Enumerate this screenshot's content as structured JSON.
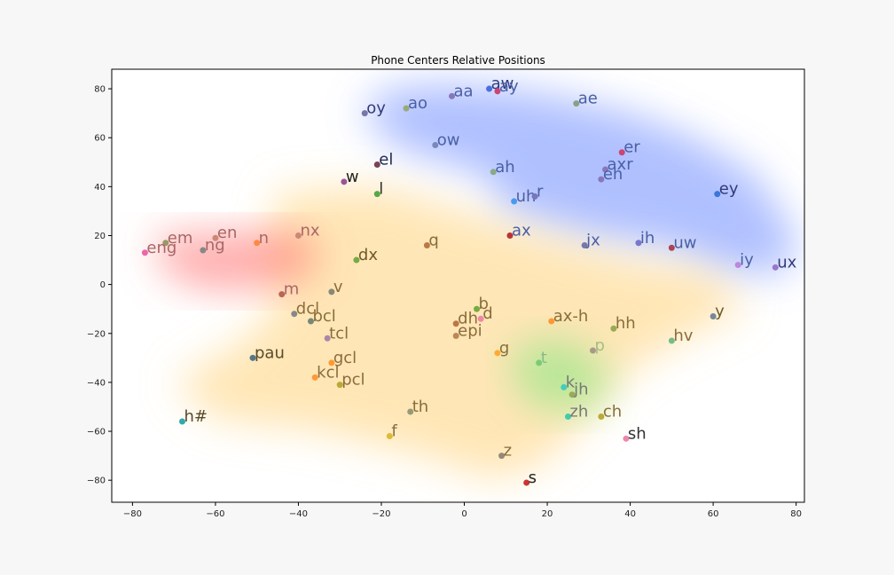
{
  "chart_data": {
    "type": "scatter",
    "title": "Phone Centers Relative Positions",
    "xlabel": "",
    "ylabel": "",
    "xlim": [
      -85,
      82
    ],
    "ylim": [
      -89,
      88
    ],
    "xticks": [
      -80,
      -60,
      -40,
      -20,
      0,
      20,
      40,
      60,
      80
    ],
    "yticks": [
      -80,
      -60,
      -40,
      -20,
      0,
      20,
      40,
      60,
      80
    ],
    "grid": false,
    "regions": [
      {
        "color": "#6e8dff",
        "points": [
          [
            -5,
            82
          ],
          [
            12,
            80
          ],
          [
            25,
            76
          ],
          [
            40,
            70
          ],
          [
            55,
            60
          ],
          [
            70,
            45
          ],
          [
            80,
            20
          ],
          [
            78,
            5
          ],
          [
            65,
            5
          ],
          [
            50,
            15
          ],
          [
            30,
            20
          ],
          [
            10,
            30
          ],
          [
            5,
            45
          ],
          [
            -15,
            55
          ],
          [
            -25,
            70
          ],
          [
            -18,
            80
          ]
        ]
      },
      {
        "color": "#ffd27a",
        "points": [
          [
            -45,
            38
          ],
          [
            -20,
            40
          ],
          [
            0,
            30
          ],
          [
            15,
            22
          ],
          [
            40,
            10
          ],
          [
            60,
            5
          ],
          [
            68,
            -10
          ],
          [
            55,
            -20
          ],
          [
            40,
            -35
          ],
          [
            30,
            -55
          ],
          [
            20,
            -72
          ],
          [
            8,
            -80
          ],
          [
            -10,
            -70
          ],
          [
            -35,
            -60
          ],
          [
            -60,
            -55
          ],
          [
            -70,
            -40
          ],
          [
            -55,
            -25
          ],
          [
            -45,
            -10
          ],
          [
            -48,
            10
          ]
        ]
      },
      {
        "color": "#ff6b6b",
        "points": [
          [
            -75,
            20
          ],
          [
            -55,
            22
          ],
          [
            -38,
            22
          ],
          [
            -35,
            8
          ],
          [
            -42,
            0
          ],
          [
            -60,
            -3
          ],
          [
            -72,
            4
          ]
        ]
      },
      {
        "color": "#7ee87e",
        "points": [
          [
            12,
            -25
          ],
          [
            25,
            -22
          ],
          [
            35,
            -35
          ],
          [
            33,
            -50
          ],
          [
            20,
            -52
          ],
          [
            12,
            -42
          ]
        ]
      }
    ],
    "points": [
      {
        "label": "aa",
        "x": -3,
        "y": 77,
        "color": "#8877bb",
        "label_color": "#4a5fa5"
      },
      {
        "label": "aw",
        "x": 6,
        "y": 80,
        "color": "#4a6fe0",
        "label_color": "#333b7a"
      },
      {
        "label": "ay",
        "x": 8,
        "y": 79,
        "color": "#cc4477",
        "label_color": "#4a5fa5"
      },
      {
        "label": "ae",
        "x": 27,
        "y": 74,
        "color": "#88a088",
        "label_color": "#4a5fa5"
      },
      {
        "label": "oy",
        "x": -24,
        "y": 70,
        "color": "#7777aa",
        "label_color": "#333b7a"
      },
      {
        "label": "ao",
        "x": -14,
        "y": 72,
        "color": "#99aa77",
        "label_color": "#4a5fa5"
      },
      {
        "label": "ow",
        "x": -7,
        "y": 57,
        "color": "#7788bb",
        "label_color": "#4a5fa5"
      },
      {
        "label": "el",
        "x": -21,
        "y": 49,
        "color": "#774455",
        "label_color": "#222a55"
      },
      {
        "label": "ah",
        "x": 7,
        "y": 46,
        "color": "#88aa88",
        "label_color": "#4a5fa5"
      },
      {
        "label": "er",
        "x": 38,
        "y": 54,
        "color": "#cc4477",
        "label_color": "#4a5fa5"
      },
      {
        "label": "axr",
        "x": 34,
        "y": 47,
        "color": "#8877bb",
        "label_color": "#4a5fa5"
      },
      {
        "label": "eh",
        "x": 33,
        "y": 43,
        "color": "#8877bb",
        "label_color": "#4a5fa5"
      },
      {
        "label": "w",
        "x": -29,
        "y": 42,
        "color": "#995599",
        "label_color": "#222222"
      },
      {
        "label": "l",
        "x": -21,
        "y": 37,
        "color": "#55aa44",
        "label_color": "#333333"
      },
      {
        "label": "uh",
        "x": 12,
        "y": 34,
        "color": "#4a99ee",
        "label_color": "#4a5fa5"
      },
      {
        "label": "r",
        "x": 17,
        "y": 36,
        "color": "#7777bb",
        "label_color": "#4a5fa5"
      },
      {
        "label": "ey",
        "x": 61,
        "y": 37,
        "color": "#3a77dd",
        "label_color": "#333b7a"
      },
      {
        "label": "ax",
        "x": 11,
        "y": 20,
        "color": "#bb3333",
        "label_color": "#4a5fa5"
      },
      {
        "label": "jx",
        "x": 29,
        "y": 16,
        "color": "#7777aa",
        "label_color": "#4a5fa5"
      },
      {
        "label": "ih",
        "x": 42,
        "y": 17,
        "color": "#7777cc",
        "label_color": "#4a5fa5"
      },
      {
        "label": "uw",
        "x": 50,
        "y": 15,
        "color": "#aa4455",
        "label_color": "#4a5fa5"
      },
      {
        "label": "iy",
        "x": 66,
        "y": 8,
        "color": "#bb88dd",
        "label_color": "#4a5fa5"
      },
      {
        "label": "ux",
        "x": 75,
        "y": 7,
        "color": "#9977cc",
        "label_color": "#333b7a"
      },
      {
        "label": "em",
        "x": -72,
        "y": 17,
        "color": "#999966",
        "label_color": "#aa6666"
      },
      {
        "label": "en",
        "x": -60,
        "y": 19,
        "color": "#cc8877",
        "label_color": "#aa6666"
      },
      {
        "label": "n",
        "x": -50,
        "y": 17,
        "color": "#ff8844",
        "label_color": "#aa6666"
      },
      {
        "label": "nx",
        "x": -40,
        "y": 20,
        "color": "#cc8877",
        "label_color": "#aa6666"
      },
      {
        "label": "eng",
        "x": -77,
        "y": 13,
        "color": "#ee66aa",
        "label_color": "#aa6666"
      },
      {
        "label": "ng",
        "x": -63,
        "y": 14,
        "color": "#888888",
        "label_color": "#aa6666"
      },
      {
        "label": "q",
        "x": -9,
        "y": 16,
        "color": "#bb7744",
        "label_color": "#8a6d3b"
      },
      {
        "label": "dx",
        "x": -26,
        "y": 10,
        "color": "#77aa44",
        "label_color": "#6d5a2b"
      },
      {
        "label": "m",
        "x": -44,
        "y": -4,
        "color": "#bb6655",
        "label_color": "#aa6666"
      },
      {
        "label": "v",
        "x": -32,
        "y": -3,
        "color": "#888877",
        "label_color": "#8a6d3b"
      },
      {
        "label": "dcl",
        "x": -41,
        "y": -12,
        "color": "#888888",
        "label_color": "#8a6d3b"
      },
      {
        "label": "bcl",
        "x": -37,
        "y": -15,
        "color": "#778877",
        "label_color": "#8a6d3b"
      },
      {
        "label": "tcl",
        "x": -33,
        "y": -22,
        "color": "#aa88aa",
        "label_color": "#8a6d3b"
      },
      {
        "label": "b",
        "x": 3,
        "y": -10,
        "color": "#77aa44",
        "label_color": "#8a6d3b"
      },
      {
        "label": "d",
        "x": 4,
        "y": -14,
        "color": "#ee88aa",
        "label_color": "#8a6d3b"
      },
      {
        "label": "dh",
        "x": -2,
        "y": -16,
        "color": "#bb7744",
        "label_color": "#8a6d3b"
      },
      {
        "label": "epi",
        "x": -2,
        "y": -21,
        "color": "#bb8855",
        "label_color": "#8a6d3b"
      },
      {
        "label": "ax-h",
        "x": 21,
        "y": -15,
        "color": "#ff9933",
        "label_color": "#8a6d3b"
      },
      {
        "label": "hh",
        "x": 36,
        "y": -18,
        "color": "#99aa55",
        "label_color": "#8a6d3b"
      },
      {
        "label": "y",
        "x": 60,
        "y": -13,
        "color": "#778899",
        "label_color": "#6d5a2b"
      },
      {
        "label": "hv",
        "x": 50,
        "y": -23,
        "color": "#77bb88",
        "label_color": "#8a6d3b"
      },
      {
        "label": "pau",
        "x": -51,
        "y": -30,
        "color": "#557788",
        "label_color": "#5a4a2b"
      },
      {
        "label": "gcl",
        "x": -32,
        "y": -32,
        "color": "#ff9933",
        "label_color": "#8a6d3b"
      },
      {
        "label": "kcl",
        "x": -36,
        "y": -38,
        "color": "#ff9933",
        "label_color": "#8a6d3b"
      },
      {
        "label": "pcl",
        "x": -30,
        "y": -41,
        "color": "#bbaa33",
        "label_color": "#8a6d3b"
      },
      {
        "label": "g",
        "x": 8,
        "y": -28,
        "color": "#ffaa33",
        "label_color": "#8a6d3b"
      },
      {
        "label": "p",
        "x": 31,
        "y": -27,
        "color": "#aa9988",
        "label_color": "#aabb88"
      },
      {
        "label": "t",
        "x": 18,
        "y": -32,
        "color": "#77cc77",
        "label_color": "#88bb88"
      },
      {
        "label": "k",
        "x": 24,
        "y": -42,
        "color": "#44ccbb",
        "label_color": "#777777"
      },
      {
        "label": "jh",
        "x": 26,
        "y": -45,
        "color": "#99aa55",
        "label_color": "#777777"
      },
      {
        "label": "zh",
        "x": 25,
        "y": -54,
        "color": "#44ccaa",
        "label_color": "#777777"
      },
      {
        "label": "ch",
        "x": 33,
        "y": -54,
        "color": "#bbaa33",
        "label_color": "#8a6d3b"
      },
      {
        "label": "sh",
        "x": 39,
        "y": -63,
        "color": "#ee88aa",
        "label_color": "#333333"
      },
      {
        "label": "h#",
        "x": -68,
        "y": -56,
        "color": "#33aaaa",
        "label_color": "#5a4a2b"
      },
      {
        "label": "th",
        "x": -13,
        "y": -52,
        "color": "#999977",
        "label_color": "#8a6d3b"
      },
      {
        "label": "f",
        "x": -18,
        "y": -62,
        "color": "#ddbb33",
        "label_color": "#8a6d3b"
      },
      {
        "label": "z",
        "x": 9,
        "y": -70,
        "color": "#998877",
        "label_color": "#8a6d3b"
      },
      {
        "label": "s",
        "x": 15,
        "y": -81,
        "color": "#cc3333",
        "label_color": "#222222"
      }
    ]
  }
}
